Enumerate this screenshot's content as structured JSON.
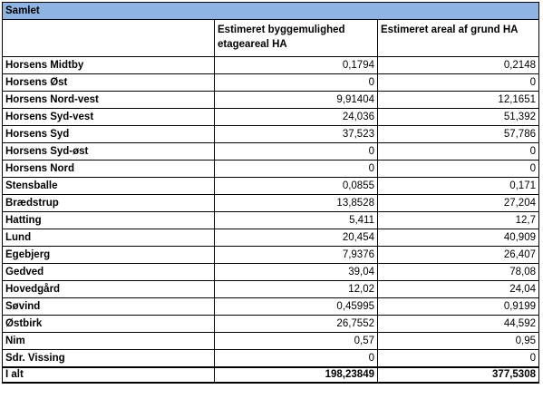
{
  "table": {
    "title": "Samlet",
    "columns": [
      "Estimeret byggemulighed etageareal HA",
      "Estimeret areal af grund HA"
    ],
    "rows": [
      [
        "Horsens Midtby",
        "0,1794",
        "0,2148"
      ],
      [
        "Horsens Øst",
        "0",
        "0"
      ],
      [
        "Horsens Nord-vest",
        "9,91404",
        "12,1651"
      ],
      [
        "Horsens Syd-vest",
        "24,036",
        "51,392"
      ],
      [
        "Horsens Syd",
        "37,523",
        "57,786"
      ],
      [
        "Horsens Syd-øst",
        "0",
        "0"
      ],
      [
        "Horsens Nord",
        "0",
        "0"
      ],
      [
        "Stensballe",
        "0,0855",
        "0,171"
      ],
      [
        "Brædstrup",
        "13,8528",
        "27,204"
      ],
      [
        "Hatting",
        "5,411",
        "12,7"
      ],
      [
        "Lund",
        "20,454",
        "40,909"
      ],
      [
        "Egebjerg",
        "7,9376",
        "26,407"
      ],
      [
        "Gedved",
        "39,04",
        "78,08"
      ],
      [
        "Hovedgård",
        "12,02",
        "24,04"
      ],
      [
        "Søvind",
        "0,45995",
        "0,9199"
      ],
      [
        "Østbirk",
        "26,7552",
        "44,592"
      ],
      [
        "Nim",
        "0,57",
        "0,95"
      ],
      [
        "Sdr. Vissing",
        "0",
        "0"
      ]
    ],
    "total": [
      "I alt",
      "198,23849",
      "377,5308"
    ]
  }
}
